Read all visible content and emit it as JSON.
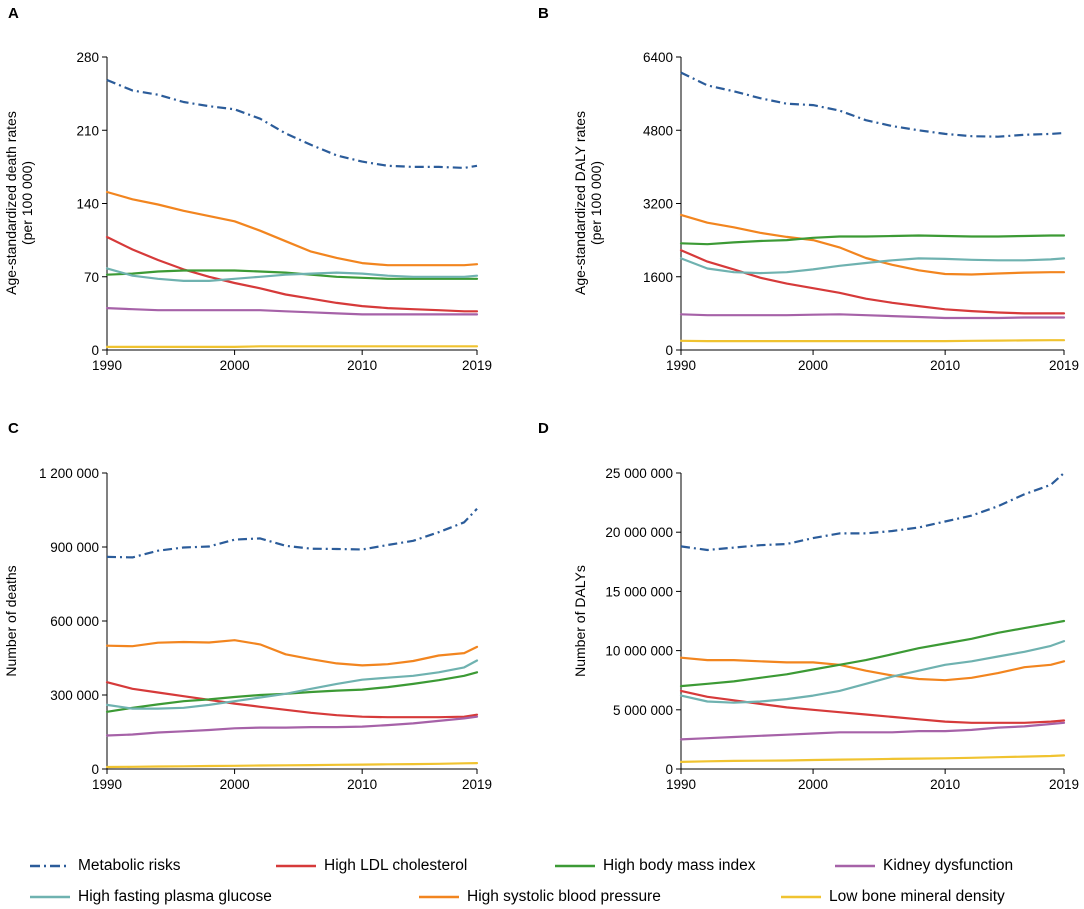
{
  "figure": {
    "series_styles": [
      {
        "key": "metabolic",
        "color": "#2b5c9a",
        "dashed": true
      },
      {
        "key": "ldl",
        "color": "#d63a3a",
        "dashed": false
      },
      {
        "key": "bmi",
        "color": "#3c9a35",
        "dashed": false
      },
      {
        "key": "kidney",
        "color": "#a662a8",
        "dashed": false
      },
      {
        "key": "glucose",
        "color": "#6fb2b0",
        "dashed": false
      },
      {
        "key": "sbp",
        "color": "#f2851f",
        "dashed": false
      },
      {
        "key": "bone",
        "color": "#f0c330",
        "dashed": false
      }
    ]
  },
  "legend": [
    {
      "key": "metabolic",
      "label": "Metabolic risks"
    },
    {
      "key": "ldl",
      "label": "High LDL cholesterol"
    },
    {
      "key": "bmi",
      "label": "High body mass index"
    },
    {
      "key": "kidney",
      "label": "Kidney dysfunction"
    },
    {
      "key": "glucose",
      "label": "High fasting plasma glucose"
    },
    {
      "key": "sbp",
      "label": "High systolic blood pressure"
    },
    {
      "key": "bone",
      "label": "Low bone mineral density"
    }
  ],
  "chart_data": [
    {
      "panel": "A",
      "type": "line",
      "ylabel": [
        "Age-standardized death rates",
        "(per 100 000)"
      ],
      "xlim": [
        1990,
        2019
      ],
      "ylim": [
        0,
        280
      ],
      "xticks": [
        1990,
        2000,
        2010,
        2019
      ],
      "yticks": [
        0,
        70,
        140,
        210,
        280
      ],
      "ytick_labels": [
        "0",
        "70",
        "140",
        "210",
        "280"
      ],
      "x": [
        1990,
        1992,
        1994,
        1996,
        1998,
        2000,
        2002,
        2004,
        2006,
        2008,
        2010,
        2012,
        2014,
        2016,
        2018,
        2019
      ],
      "series": [
        {
          "key": "metabolic",
          "name": "Metabolic risks",
          "values": [
            258,
            248,
            244,
            237,
            233,
            230,
            221,
            207,
            196,
            186,
            180,
            176,
            175,
            175,
            174,
            176
          ]
        },
        {
          "key": "sbp",
          "name": "High systolic blood pressure",
          "values": [
            151,
            144,
            139,
            133,
            128,
            123,
            114,
            104,
            94,
            88,
            83,
            81,
            81,
            81,
            81,
            82
          ]
        },
        {
          "key": "ldl",
          "name": "High LDL cholesterol",
          "values": [
            108,
            96,
            86,
            77,
            70,
            64,
            59,
            53,
            49,
            45,
            42,
            40,
            39,
            38,
            37,
            37
          ]
        },
        {
          "key": "bmi",
          "name": "High body mass index",
          "values": [
            72,
            73,
            75,
            76,
            76,
            76,
            75,
            74,
            72,
            70,
            69,
            68,
            68,
            68,
            68,
            68
          ]
        },
        {
          "key": "glucose",
          "name": "High fasting plasma glucose",
          "values": [
            78,
            71,
            68,
            66,
            66,
            68,
            70,
            72,
            73,
            74,
            73,
            71,
            70,
            70,
            70,
            71
          ]
        },
        {
          "key": "kidney",
          "name": "Kidney dysfunction",
          "values": [
            40,
            39,
            38,
            38,
            38,
            38,
            38,
            37,
            36,
            35,
            34,
            34,
            34,
            34,
            34,
            34
          ]
        },
        {
          "key": "bone",
          "name": "Low bone mineral density",
          "values": [
            3,
            3,
            3,
            3,
            3,
            3,
            3.5,
            3.5,
            3.5,
            3.5,
            3.5,
            3.5,
            3.5,
            3.5,
            3.5,
            3.5
          ]
        }
      ]
    },
    {
      "panel": "B",
      "type": "line",
      "ylabel": [
        "Age-standardized DALY rates",
        "(per 100 000)"
      ],
      "xlim": [
        1990,
        2019
      ],
      "ylim": [
        0,
        6400
      ],
      "xticks": [
        1990,
        2000,
        2010,
        2019
      ],
      "yticks": [
        0,
        1600,
        3200,
        4800,
        6400
      ],
      "ytick_labels": [
        "0",
        "1600",
        "3200",
        "4800",
        "6400"
      ],
      "x": [
        1990,
        1992,
        1994,
        1996,
        1998,
        2000,
        2002,
        2004,
        2006,
        2008,
        2010,
        2012,
        2014,
        2016,
        2018,
        2019
      ],
      "series": [
        {
          "key": "metabolic",
          "name": "Metabolic risks",
          "values": [
            6060,
            5780,
            5650,
            5500,
            5380,
            5350,
            5230,
            5020,
            4890,
            4800,
            4720,
            4670,
            4660,
            4700,
            4720,
            4740
          ]
        },
        {
          "key": "sbp",
          "name": "High systolic blood pressure",
          "values": [
            2950,
            2780,
            2680,
            2560,
            2470,
            2400,
            2240,
            2010,
            1860,
            1740,
            1660,
            1650,
            1670,
            1690,
            1700,
            1700
          ]
        },
        {
          "key": "ldl",
          "name": "High LDL cholesterol",
          "values": [
            2180,
            1930,
            1760,
            1580,
            1450,
            1350,
            1250,
            1120,
            1030,
            960,
            890,
            850,
            820,
            800,
            800,
            800
          ]
        },
        {
          "key": "bmi",
          "name": "High body mass index",
          "values": [
            2330,
            2310,
            2350,
            2380,
            2400,
            2450,
            2480,
            2480,
            2490,
            2500,
            2490,
            2480,
            2480,
            2490,
            2500,
            2500
          ]
        },
        {
          "key": "glucose",
          "name": "High fasting plasma glucose",
          "values": [
            2000,
            1780,
            1700,
            1680,
            1700,
            1760,
            1840,
            1900,
            1960,
            2000,
            1990,
            1970,
            1960,
            1960,
            1980,
            2000
          ]
        },
        {
          "key": "kidney",
          "name": "Kidney dysfunction",
          "values": [
            780,
            760,
            760,
            760,
            760,
            770,
            780,
            760,
            740,
            720,
            700,
            700,
            700,
            710,
            710,
            710
          ]
        },
        {
          "key": "bone",
          "name": "Low bone mineral density",
          "values": [
            200,
            195,
            195,
            195,
            195,
            195,
            195,
            195,
            195,
            195,
            195,
            200,
            205,
            210,
            215,
            215
          ]
        }
      ]
    },
    {
      "panel": "C",
      "type": "line",
      "ylabel": [
        "Number of deaths"
      ],
      "xlim": [
        1990,
        2019
      ],
      "ylim": [
        0,
        1200000
      ],
      "xticks": [
        1990,
        2000,
        2010,
        2019
      ],
      "yticks": [
        0,
        300000,
        600000,
        900000,
        1200000
      ],
      "ytick_labels": [
        "0",
        "300 000",
        "600 000",
        "900 000",
        "1 200 000"
      ],
      "x": [
        1990,
        1992,
        1994,
        1996,
        1998,
        2000,
        2002,
        2004,
        2006,
        2008,
        2010,
        2012,
        2014,
        2016,
        2018,
        2019
      ],
      "series": [
        {
          "key": "metabolic",
          "name": "Metabolic risks",
          "values": [
            860000,
            858000,
            885000,
            898000,
            902000,
            930000,
            935000,
            905000,
            893000,
            892000,
            890000,
            908000,
            925000,
            960000,
            1000000,
            1055000
          ]
        },
        {
          "key": "sbp",
          "name": "High systolic blood pressure",
          "values": [
            500000,
            498000,
            512000,
            515000,
            513000,
            522000,
            505000,
            465000,
            445000,
            428000,
            420000,
            425000,
            438000,
            460000,
            470000,
            495000
          ]
        },
        {
          "key": "ldl",
          "name": "High LDL cholesterol",
          "values": [
            352000,
            325000,
            310000,
            295000,
            280000,
            265000,
            252000,
            240000,
            228000,
            218000,
            212000,
            210000,
            210000,
            210000,
            212000,
            220000
          ]
        },
        {
          "key": "bmi",
          "name": "High body mass index",
          "values": [
            232000,
            248000,
            262000,
            275000,
            282000,
            292000,
            300000,
            305000,
            312000,
            318000,
            322000,
            332000,
            345000,
            360000,
            378000,
            392000
          ]
        },
        {
          "key": "glucose",
          "name": "High fasting plasma glucose",
          "values": [
            260000,
            245000,
            245000,
            248000,
            260000,
            275000,
            290000,
            305000,
            325000,
            345000,
            362000,
            370000,
            378000,
            392000,
            412000,
            440000
          ]
        },
        {
          "key": "kidney",
          "name": "Kidney dysfunction",
          "values": [
            136000,
            140000,
            148000,
            153000,
            158000,
            165000,
            168000,
            168000,
            170000,
            170000,
            172000,
            178000,
            185000,
            195000,
            205000,
            212000
          ]
        },
        {
          "key": "bone",
          "name": "Low bone mineral density",
          "values": [
            8000,
            9000,
            10000,
            11000,
            12000,
            13000,
            14000,
            15000,
            16000,
            17000,
            18000,
            19000,
            20000,
            21000,
            23000,
            24000
          ]
        }
      ]
    },
    {
      "panel": "D",
      "type": "line",
      "ylabel": [
        "Number of DALYs"
      ],
      "xlim": [
        1990,
        2019
      ],
      "ylim": [
        0,
        25000000
      ],
      "xticks": [
        1990,
        2000,
        2010,
        2019
      ],
      "yticks": [
        0,
        5000000,
        10000000,
        15000000,
        20000000,
        25000000
      ],
      "ytick_labels": [
        "0",
        "5 000 000",
        "10 000 000",
        "15 000 000",
        "20 000 000",
        "25 000 000"
      ],
      "x": [
        1990,
        1992,
        1994,
        1996,
        1998,
        2000,
        2002,
        2004,
        2006,
        2008,
        2010,
        2012,
        2014,
        2016,
        2018,
        2019
      ],
      "series": [
        {
          "key": "metabolic",
          "name": "Metabolic risks",
          "values": [
            18800000,
            18500000,
            18700000,
            18900000,
            19000000,
            19500000,
            19900000,
            19900000,
            20100000,
            20400000,
            20900000,
            21400000,
            22200000,
            23200000,
            24000000,
            25000000
          ]
        },
        {
          "key": "sbp",
          "name": "High systolic blood pressure",
          "values": [
            9400000,
            9200000,
            9200000,
            9100000,
            9000000,
            9000000,
            8800000,
            8300000,
            7900000,
            7600000,
            7500000,
            7700000,
            8100000,
            8600000,
            8800000,
            9100000
          ]
        },
        {
          "key": "ldl",
          "name": "High LDL cholesterol",
          "values": [
            6600000,
            6100000,
            5800000,
            5500000,
            5200000,
            5000000,
            4800000,
            4600000,
            4400000,
            4200000,
            4000000,
            3900000,
            3900000,
            3900000,
            4000000,
            4100000
          ]
        },
        {
          "key": "bmi",
          "name": "High body mass index",
          "values": [
            7000000,
            7200000,
            7400000,
            7700000,
            8000000,
            8400000,
            8800000,
            9200000,
            9700000,
            10200000,
            10600000,
            11000000,
            11500000,
            11900000,
            12300000,
            12500000
          ]
        },
        {
          "key": "glucose",
          "name": "High fasting plasma glucose",
          "values": [
            6200000,
            5700000,
            5600000,
            5700000,
            5900000,
            6200000,
            6600000,
            7200000,
            7800000,
            8300000,
            8800000,
            9100000,
            9500000,
            9900000,
            10400000,
            10800000
          ]
        },
        {
          "key": "kidney",
          "name": "Kidney dysfunction",
          "values": [
            2500000,
            2600000,
            2700000,
            2800000,
            2900000,
            3000000,
            3100000,
            3100000,
            3100000,
            3200000,
            3200000,
            3300000,
            3500000,
            3600000,
            3800000,
            3900000
          ]
        },
        {
          "key": "bone",
          "name": "Low bone mineral density",
          "values": [
            600000,
            650000,
            680000,
            700000,
            720000,
            760000,
            790000,
            820000,
            850000,
            880000,
            900000,
            950000,
            1000000,
            1050000,
            1100000,
            1150000
          ]
        }
      ]
    }
  ]
}
